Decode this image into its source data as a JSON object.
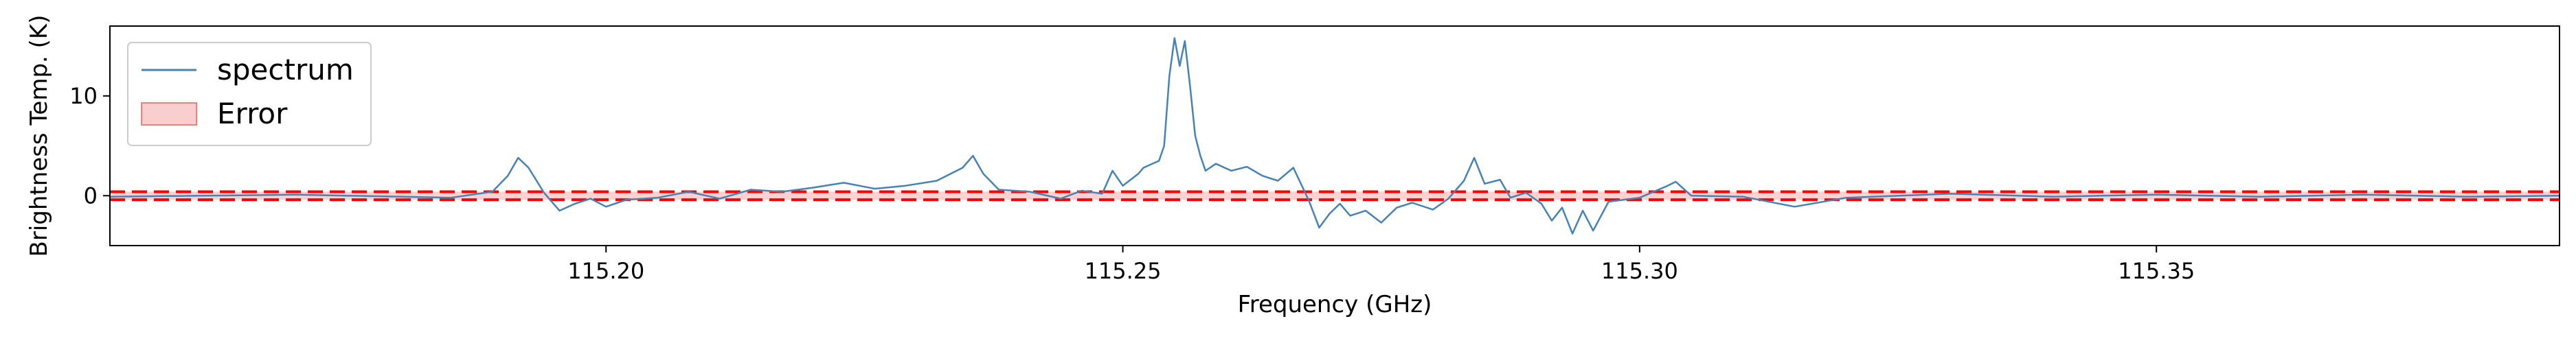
{
  "chart_data": {
    "type": "line",
    "xlabel": "Frequency (GHz)",
    "ylabel": "Brightness Temp. (K)",
    "xlim": [
      115.152,
      115.389
    ],
    "ylim": [
      -5,
      17
    ],
    "x_ticks": [
      115.2,
      115.25,
      115.3,
      115.35
    ],
    "x_tick_labels": [
      "115.20",
      "115.25",
      "115.30",
      "115.35"
    ],
    "y_ticks": [
      0,
      10
    ],
    "y_tick_labels": [
      "0",
      "10"
    ],
    "grid": false,
    "legend": {
      "placement": "top-left",
      "entries": [
        {
          "label": "spectrum",
          "kind": "line",
          "color": "#4682b4"
        },
        {
          "label": "Error",
          "kind": "patch",
          "color": "#f4a6a6"
        }
      ]
    },
    "error_band": {
      "lower": -0.4,
      "upper": 0.4,
      "color": "#ff0000"
    },
    "series": [
      {
        "name": "spectrum",
        "color": "#4682b4",
        "x": [
          115.152,
          115.17,
          115.185,
          115.189,
          115.1905,
          115.1915,
          115.1925,
          115.194,
          115.1955,
          115.197,
          115.1985,
          115.2,
          115.202,
          115.205,
          115.208,
          115.211,
          115.214,
          115.217,
          115.22,
          115.223,
          115.226,
          115.229,
          115.232,
          115.2345,
          115.2355,
          115.2365,
          115.238,
          115.241,
          115.244,
          115.246,
          115.248,
          115.249,
          115.25,
          115.251,
          115.2515,
          115.252,
          115.2535,
          115.254,
          115.2545,
          115.255,
          115.2555,
          115.256,
          115.2565,
          115.257,
          115.2575,
          115.258,
          115.259,
          115.2605,
          115.262,
          115.2635,
          115.265,
          115.2665,
          115.268,
          115.269,
          115.27,
          115.271,
          115.272,
          115.2735,
          115.275,
          115.2765,
          115.278,
          115.28,
          115.2815,
          115.283,
          115.284,
          115.285,
          115.2865,
          115.2875,
          115.289,
          115.2905,
          115.2915,
          115.2925,
          115.2935,
          115.2945,
          115.2955,
          115.297,
          115.3,
          115.3025,
          115.3035,
          115.305,
          115.31,
          115.315,
          115.32,
          115.33,
          115.34,
          115.35,
          115.36,
          115.37,
          115.38,
          115.389
        ],
        "values": [
          -0.1,
          0.1,
          -0.2,
          0.4,
          2.0,
          3.8,
          2.8,
          0.3,
          -1.5,
          -0.8,
          -0.3,
          -1.1,
          -0.4,
          -0.2,
          0.4,
          -0.3,
          0.6,
          0.4,
          0.8,
          1.3,
          0.7,
          1.0,
          1.5,
          2.8,
          4.0,
          2.2,
          0.6,
          0.4,
          -0.3,
          0.5,
          0.2,
          2.5,
          1.0,
          1.8,
          2.2,
          2.8,
          3.5,
          5.0,
          12.0,
          15.8,
          13.0,
          15.5,
          11.0,
          6.0,
          4.0,
          2.5,
          3.2,
          2.5,
          2.9,
          2.0,
          1.5,
          2.8,
          -0.5,
          -3.2,
          -1.8,
          -0.8,
          -2.0,
          -1.5,
          -2.7,
          -1.2,
          -0.7,
          -1.4,
          -0.3,
          1.5,
          3.8,
          1.2,
          1.6,
          -0.2,
          0.3,
          -0.8,
          -2.5,
          -1.2,
          -3.8,
          -1.5,
          -3.5,
          -0.6,
          -0.2,
          0.9,
          1.4,
          0.0,
          -0.1,
          -1.1,
          -0.2,
          0.2,
          -0.1,
          0.1,
          -0.1,
          0.1,
          -0.1,
          0.0
        ]
      }
    ]
  }
}
